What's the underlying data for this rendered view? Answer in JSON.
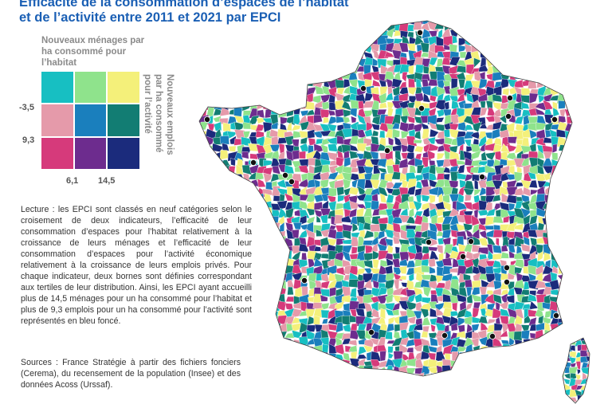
{
  "title": {
    "line1": "Efficacité de la consommation d’espaces de l’habitat",
    "line2": "et de l’activité entre 2011 et 2021 par EPCI"
  },
  "legend": {
    "x_title": "Nouveaux ménages par ha consommé pour l’habitat",
    "y_title": "Nouveaux emplois par ha consommé pour l’activité",
    "x_ticks": [
      "6,1",
      "14,5"
    ],
    "y_ticks": [
      "-3,5",
      "9,3"
    ],
    "colors": [
      [
        "#17bfc2",
        "#8fe38c",
        "#f4f07a"
      ],
      [
        "#e59aaa",
        "#1a7fbd",
        "#127d73"
      ],
      [
        "#d63a7b",
        "#6d2c8e",
        "#1b2b7c"
      ]
    ]
  },
  "lecture": "Lecture : les EPCI sont classés en neuf catégories selon le croisement de deux indicateurs, l’efficacité de leur consommation d’espaces pour l’habitat relativement à la croissance de leurs ménages et l’efficacité de leur consommation d’espaces pour l’activité économique relativement à la croissance de leurs emplois privés. Pour chaque indicateur, deux bornes sont définies correspondant aux tertiles de leur distribution. Ainsi, les EPCI ayant accueilli plus de 14,5 ménages pour un ha consommé pour l’habitat et plus de 9,3 emplois pour un ha consommé pour l’activité sont représentés en bleu foncé.",
  "sources": "Sources : France Stratégie à partir des fichiers fonciers (Cerema), du recensement de la population (Insee) et des données Acoss (Urssaf).",
  "map": {
    "region": "France",
    "city_marker_count": 22
  }
}
